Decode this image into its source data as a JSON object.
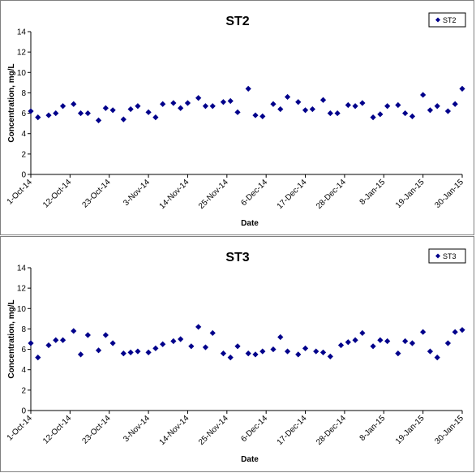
{
  "chart_data": [
    {
      "type": "scatter",
      "title": "ST2",
      "xlabel": "Date",
      "ylabel": "Concentration, mg/L",
      "ylim": [
        0,
        14
      ],
      "yticks": [
        0,
        2,
        4,
        6,
        8,
        10,
        12,
        14
      ],
      "xticks": [
        "1-Oct-14",
        "12-Oct-14",
        "23-Oct-14",
        "3-Nov-14",
        "14-Nov-14",
        "25-Nov-14",
        "6-Dec-14",
        "17-Dec-14",
        "28-Dec-14",
        "8-Jan-15",
        "19-Jan-15",
        "30-Jan-15"
      ],
      "xlim": [
        "2014-10-01",
        "2015-01-30"
      ],
      "grid": false,
      "legend_position": "top-right",
      "marker_color": "#00008B",
      "series": [
        {
          "name": "ST2",
          "points": [
            {
              "x": "2014-10-01",
              "y": 6.2
            },
            {
              "x": "2014-10-03",
              "y": 5.6
            },
            {
              "x": "2014-10-06",
              "y": 5.8
            },
            {
              "x": "2014-10-08",
              "y": 6.0
            },
            {
              "x": "2014-10-10",
              "y": 6.7
            },
            {
              "x": "2014-10-13",
              "y": 6.9
            },
            {
              "x": "2014-10-15",
              "y": 6.0
            },
            {
              "x": "2014-10-17",
              "y": 6.0
            },
            {
              "x": "2014-10-20",
              "y": 5.3
            },
            {
              "x": "2014-10-22",
              "y": 6.5
            },
            {
              "x": "2014-10-24",
              "y": 6.3
            },
            {
              "x": "2014-10-27",
              "y": 5.4
            },
            {
              "x": "2014-10-29",
              "y": 6.4
            },
            {
              "x": "2014-10-31",
              "y": 6.7
            },
            {
              "x": "2014-11-03",
              "y": 6.1
            },
            {
              "x": "2014-11-05",
              "y": 5.6
            },
            {
              "x": "2014-11-07",
              "y": 6.9
            },
            {
              "x": "2014-11-10",
              "y": 7.0
            },
            {
              "x": "2014-11-12",
              "y": 6.5
            },
            {
              "x": "2014-11-14",
              "y": 7.0
            },
            {
              "x": "2014-11-17",
              "y": 7.5
            },
            {
              "x": "2014-11-19",
              "y": 6.7
            },
            {
              "x": "2014-11-21",
              "y": 6.7
            },
            {
              "x": "2014-11-24",
              "y": 7.1
            },
            {
              "x": "2014-11-26",
              "y": 7.2
            },
            {
              "x": "2014-11-28",
              "y": 6.1
            },
            {
              "x": "2014-12-01",
              "y": 8.4
            },
            {
              "x": "2014-12-03",
              "y": 5.8
            },
            {
              "x": "2014-12-05",
              "y": 5.7
            },
            {
              "x": "2014-12-08",
              "y": 6.9
            },
            {
              "x": "2014-12-10",
              "y": 6.4
            },
            {
              "x": "2014-12-12",
              "y": 7.6
            },
            {
              "x": "2014-12-15",
              "y": 7.1
            },
            {
              "x": "2014-12-17",
              "y": 6.3
            },
            {
              "x": "2014-12-19",
              "y": 6.4
            },
            {
              "x": "2014-12-22",
              "y": 7.3
            },
            {
              "x": "2014-12-24",
              "y": 6.0
            },
            {
              "x": "2014-12-26",
              "y": 6.0
            },
            {
              "x": "2014-12-29",
              "y": 6.8
            },
            {
              "x": "2014-12-31",
              "y": 6.7
            },
            {
              "x": "2015-01-02",
              "y": 7.0
            },
            {
              "x": "2015-01-05",
              "y": 5.6
            },
            {
              "x": "2015-01-07",
              "y": 5.9
            },
            {
              "x": "2015-01-09",
              "y": 6.7
            },
            {
              "x": "2015-01-12",
              "y": 6.8
            },
            {
              "x": "2015-01-14",
              "y": 6.0
            },
            {
              "x": "2015-01-16",
              "y": 5.7
            },
            {
              "x": "2015-01-19",
              "y": 7.8
            },
            {
              "x": "2015-01-21",
              "y": 6.3
            },
            {
              "x": "2015-01-23",
              "y": 6.7
            },
            {
              "x": "2015-01-26",
              "y": 6.2
            },
            {
              "x": "2015-01-28",
              "y": 6.9
            },
            {
              "x": "2015-01-30",
              "y": 8.4
            }
          ]
        }
      ]
    },
    {
      "type": "scatter",
      "title": "ST3",
      "xlabel": "Date",
      "ylabel": "Concentration, mg/L",
      "ylim": [
        0,
        14
      ],
      "yticks": [
        0,
        2,
        4,
        6,
        8,
        10,
        12,
        14
      ],
      "xticks": [
        "1-Oct-14",
        "12-Oct-14",
        "23-Oct-14",
        "3-Nov-14",
        "14-Nov-14",
        "25-Nov-14",
        "6-Dec-14",
        "17-Dec-14",
        "28-Dec-14",
        "8-Jan-15",
        "19-Jan-15",
        "30-Jan-15"
      ],
      "xlim": [
        "2014-10-01",
        "2015-01-30"
      ],
      "grid": false,
      "legend_position": "top-right",
      "marker_color": "#00008B",
      "series": [
        {
          "name": "ST3",
          "points": [
            {
              "x": "2014-10-01",
              "y": 6.6
            },
            {
              "x": "2014-10-03",
              "y": 5.2
            },
            {
              "x": "2014-10-06",
              "y": 6.4
            },
            {
              "x": "2014-10-08",
              "y": 6.9
            },
            {
              "x": "2014-10-10",
              "y": 6.9
            },
            {
              "x": "2014-10-13",
              "y": 7.8
            },
            {
              "x": "2014-10-15",
              "y": 5.5
            },
            {
              "x": "2014-10-17",
              "y": 7.4
            },
            {
              "x": "2014-10-20",
              "y": 5.9
            },
            {
              "x": "2014-10-22",
              "y": 7.4
            },
            {
              "x": "2014-10-24",
              "y": 6.6
            },
            {
              "x": "2014-10-27",
              "y": 5.6
            },
            {
              "x": "2014-10-29",
              "y": 5.7
            },
            {
              "x": "2014-10-31",
              "y": 5.8
            },
            {
              "x": "2014-11-03",
              "y": 5.7
            },
            {
              "x": "2014-11-05",
              "y": 6.1
            },
            {
              "x": "2014-11-07",
              "y": 6.5
            },
            {
              "x": "2014-11-10",
              "y": 6.8
            },
            {
              "x": "2014-11-12",
              "y": 7.0
            },
            {
              "x": "2014-11-15",
              "y": 6.3
            },
            {
              "x": "2014-11-17",
              "y": 8.2
            },
            {
              "x": "2014-11-19",
              "y": 6.2
            },
            {
              "x": "2014-11-21",
              "y": 7.6
            },
            {
              "x": "2014-11-24",
              "y": 5.6
            },
            {
              "x": "2014-11-26",
              "y": 5.2
            },
            {
              "x": "2014-11-28",
              "y": 6.3
            },
            {
              "x": "2014-12-01",
              "y": 5.6
            },
            {
              "x": "2014-12-03",
              "y": 5.5
            },
            {
              "x": "2014-12-05",
              "y": 5.8
            },
            {
              "x": "2014-12-08",
              "y": 6.0
            },
            {
              "x": "2014-12-10",
              "y": 7.2
            },
            {
              "x": "2014-12-12",
              "y": 5.8
            },
            {
              "x": "2014-12-15",
              "y": 5.5
            },
            {
              "x": "2014-12-17",
              "y": 6.1
            },
            {
              "x": "2014-12-20",
              "y": 5.8
            },
            {
              "x": "2014-12-22",
              "y": 5.7
            },
            {
              "x": "2014-12-24",
              "y": 5.3
            },
            {
              "x": "2014-12-27",
              "y": 6.4
            },
            {
              "x": "2014-12-29",
              "y": 6.7
            },
            {
              "x": "2014-12-31",
              "y": 6.9
            },
            {
              "x": "2015-01-02",
              "y": 7.6
            },
            {
              "x": "2015-01-05",
              "y": 6.3
            },
            {
              "x": "2015-01-07",
              "y": 6.9
            },
            {
              "x": "2015-01-09",
              "y": 6.8
            },
            {
              "x": "2015-01-12",
              "y": 5.6
            },
            {
              "x": "2015-01-14",
              "y": 6.8
            },
            {
              "x": "2015-01-16",
              "y": 6.6
            },
            {
              "x": "2015-01-19",
              "y": 7.7
            },
            {
              "x": "2015-01-21",
              "y": 5.8
            },
            {
              "x": "2015-01-23",
              "y": 5.2
            },
            {
              "x": "2015-01-26",
              "y": 6.6
            },
            {
              "x": "2015-01-28",
              "y": 7.7
            },
            {
              "x": "2015-01-30",
              "y": 7.9
            }
          ]
        }
      ]
    }
  ]
}
